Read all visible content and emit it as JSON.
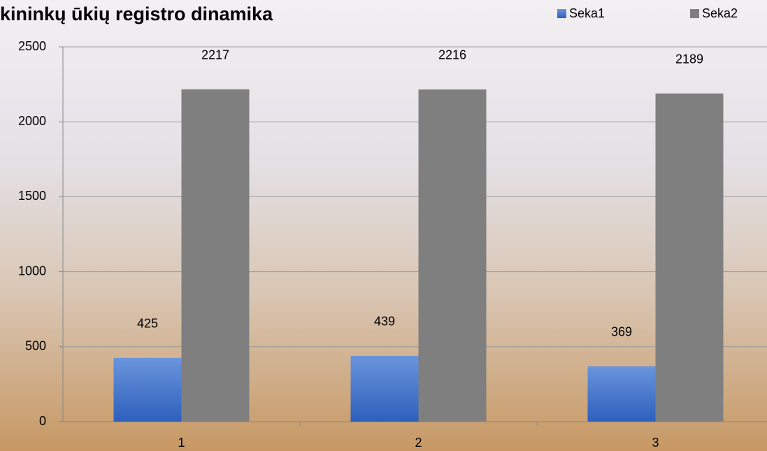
{
  "chart_data": {
    "type": "bar",
    "title": "kininkų ūkių registro dinamika",
    "categories": [
      "1",
      "2",
      "3"
    ],
    "series": [
      {
        "name": "Seka1",
        "color": "#3a6bc8",
        "values": [
          425,
          439,
          369
        ]
      },
      {
        "name": "Seka2",
        "color": "#7f7f7f",
        "values": [
          2217,
          2216,
          2189
        ]
      }
    ],
    "ylim": [
      0,
      2500
    ],
    "yticks": [
      0,
      500,
      1000,
      1500,
      2000,
      2500
    ],
    "grid": true,
    "legend": "top-right"
  }
}
